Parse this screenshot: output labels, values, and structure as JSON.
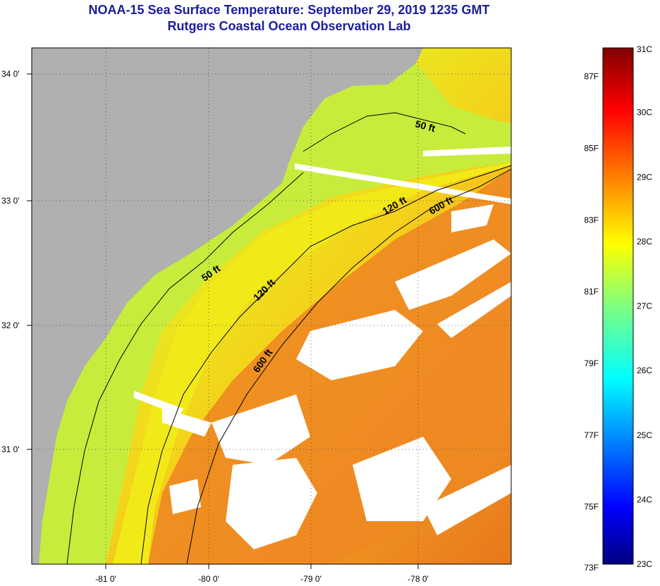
{
  "header": {
    "title": "NOAA-15 Sea Surface Temperature:  September 29, 2019 1235 GMT",
    "subtitle": "Rutgers Coastal Ocean Observation Lab"
  },
  "map": {
    "longitude_ticks": [
      "-81 0'",
      "-80 0'",
      "-79 0'",
      "-78 0'"
    ],
    "latitude_ticks": [
      "34 0'",
      "33 0'",
      "32 0'",
      "31 0'"
    ],
    "contours": [
      {
        "label": "50 ft",
        "depth_ft": 50
      },
      {
        "label": "120 ft",
        "depth_ft": 120
      },
      {
        "label": "600 ft",
        "depth_ft": 600
      }
    ],
    "contour_label_instances": [
      "50 ft",
      "50 ft",
      "120 ft",
      "120 ft",
      "600 ft",
      "600 ft"
    ],
    "colors": {
      "land": "#b0b0b0",
      "cloud": "#ffffff",
      "nearshore": "#c8ec3c",
      "midshelf": "#f2ea18",
      "offshore": "#ee8822",
      "gulfstream": "#e8641c"
    }
  },
  "colorbar": {
    "celsius_labels": [
      "31C",
      "30C",
      "29C",
      "28C",
      "27C",
      "26C",
      "25C",
      "24C",
      "23C"
    ],
    "fahrenheit_labels": [
      "87F",
      "85F",
      "83F",
      "81F",
      "79F",
      "77F",
      "75F",
      "73F"
    ],
    "range_c": [
      23,
      31
    ],
    "colormap": "jet"
  }
}
